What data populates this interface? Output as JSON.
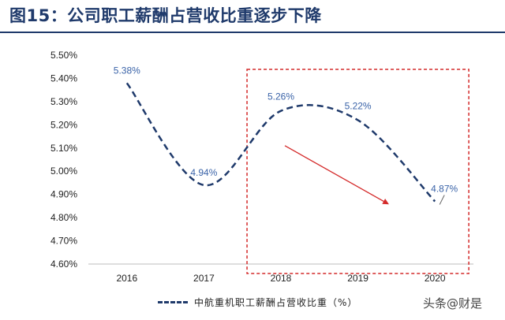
{
  "title": "图15：公司职工薪酬占营收比重逐步下降",
  "watermark": "头条@财是",
  "colors": {
    "series": "#1f3a6b",
    "label": "#3a63a8",
    "highlight_box": "#d42a2a",
    "arrow": "#d42a2a"
  },
  "chart_data": {
    "type": "line",
    "smooth": true,
    "line_style": "dashed",
    "categories": [
      "2016",
      "2017",
      "2018",
      "2019",
      "2020"
    ],
    "series": [
      {
        "name": "中航重机职工薪酬占营收比重（%）",
        "values": [
          5.38,
          4.94,
          5.26,
          5.22,
          4.87
        ]
      }
    ],
    "data_labels": [
      "5.38%",
      "4.94%",
      "5.26%",
      "5.22%",
      "4.87%"
    ],
    "ylim": [
      4.6,
      5.5
    ],
    "y_ticks": [
      "4.60%",
      "4.70%",
      "4.80%",
      "4.90%",
      "5.00%",
      "5.10%",
      "5.20%",
      "5.30%",
      "5.40%",
      "5.50%"
    ],
    "legend_position": "bottom",
    "grid": false,
    "annotations": [
      {
        "type": "box",
        "from": "2018",
        "to": "2020"
      },
      {
        "type": "arrow",
        "direction": "down",
        "from": 5.11,
        "to": 4.86
      }
    ]
  }
}
